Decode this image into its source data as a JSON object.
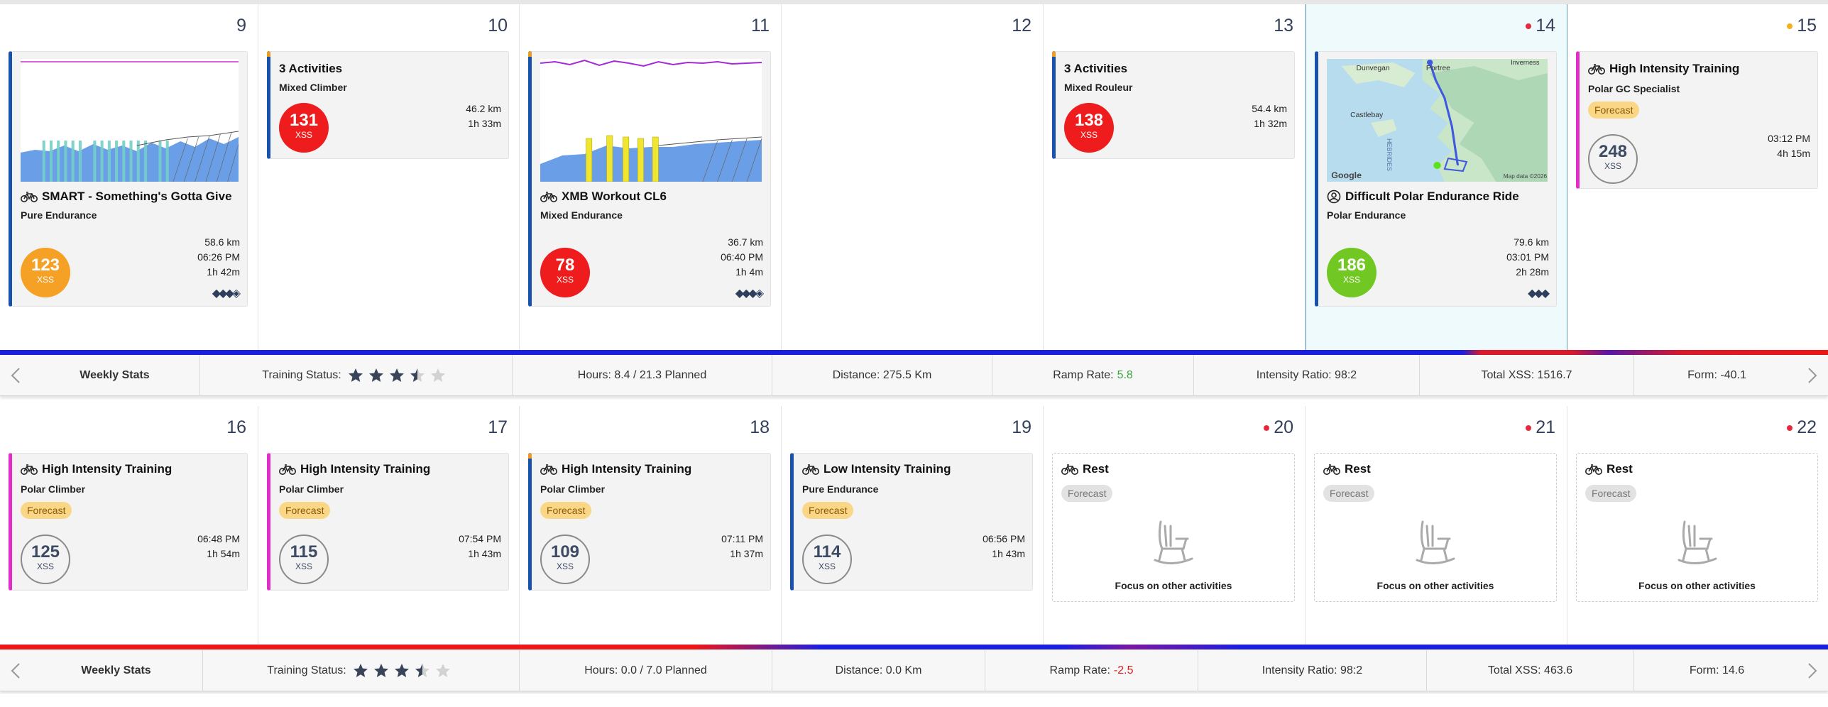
{
  "week1": {
    "days": [
      {
        "num": "9",
        "marker": ""
      },
      {
        "num": "10",
        "marker": ""
      },
      {
        "num": "11",
        "marker": ""
      },
      {
        "num": "12",
        "marker": ""
      },
      {
        "num": "13",
        "marker": ""
      },
      {
        "num": "14",
        "marker": "red"
      },
      {
        "num": "15",
        "marker": "gold"
      }
    ],
    "d9": {
      "title": "SMART - Something's Gotta Give",
      "sub": "Pure Endurance",
      "km": "58.6 km",
      "time": "06:26 PM",
      "dur": "1h 42m",
      "xss": "123",
      "xss_label": "XSS"
    },
    "d10": {
      "title": "3 Activities",
      "sub": "Mixed Climber",
      "km": "46.2 km",
      "dur": "1h 33m",
      "xss": "131",
      "xss_label": "XSS"
    },
    "d11": {
      "title": "XMB Workout CL6",
      "sub": "Mixed Endurance",
      "km": "36.7 km",
      "time": "06:40 PM",
      "dur": "1h 4m",
      "xss": "78",
      "xss_label": "XSS"
    },
    "d13": {
      "title": "3 Activities",
      "sub": "Mixed Rouleur",
      "km": "54.4 km",
      "dur": "1h 32m",
      "xss": "138",
      "xss_label": "XSS"
    },
    "d14": {
      "title": "Difficult Polar Endurance Ride",
      "sub": "Polar Endurance",
      "km": "79.6 km",
      "time": "03:01 PM",
      "dur": "2h 28m",
      "xss": "186",
      "xss_label": "XSS",
      "map": {
        "places": [
          "Dunvegan",
          "Portree",
          "Inverness",
          "Castlebay",
          "HEBRIDES"
        ],
        "logo": "Google",
        "copyright": "Map data ©2026"
      }
    },
    "d15": {
      "title": "High Intensity Training",
      "sub": "Polar GC Specialist",
      "forecast": "Forecast",
      "time": "03:12 PM",
      "dur": "4h 15m",
      "xss": "248",
      "xss_label": "XSS"
    }
  },
  "stats1": {
    "title": "Weekly Stats",
    "training_status_label": "Training Status:",
    "training_status_stars": 3.5,
    "hours": "Hours: 8.4 / 21.3 Planned",
    "distance": "Distance: 275.5 Km",
    "ramp_label": "Ramp Rate:",
    "ramp_value": "5.8",
    "intensity": "Intensity Ratio: 98:2",
    "total_xss": "Total XSS: 1516.7",
    "form": "Form: -40.1"
  },
  "week2": {
    "days": [
      {
        "num": "16",
        "marker": ""
      },
      {
        "num": "17",
        "marker": ""
      },
      {
        "num": "18",
        "marker": ""
      },
      {
        "num": "19",
        "marker": ""
      },
      {
        "num": "20",
        "marker": "red"
      },
      {
        "num": "21",
        "marker": "red"
      },
      {
        "num": "22",
        "marker": "red"
      }
    ],
    "d16": {
      "title": "High Intensity Training",
      "sub": "Polar Climber",
      "forecast": "Forecast",
      "time": "06:48 PM",
      "dur": "1h 54m",
      "xss": "125",
      "xss_label": "XSS"
    },
    "d17": {
      "title": "High Intensity Training",
      "sub": "Polar Climber",
      "forecast": "Forecast",
      "time": "07:54 PM",
      "dur": "1h 43m",
      "xss": "115",
      "xss_label": "XSS"
    },
    "d18": {
      "title": "High Intensity Training",
      "sub": "Polar Climber",
      "forecast": "Forecast",
      "time": "07:11 PM",
      "dur": "1h 37m",
      "xss": "109",
      "xss_label": "XSS"
    },
    "d19": {
      "title": "Low Intensity Training",
      "sub": "Pure Endurance",
      "forecast": "Forecast",
      "time": "06:56 PM",
      "dur": "1h 43m",
      "xss": "114",
      "xss_label": "XSS"
    },
    "rest": {
      "title": "Rest",
      "forecast": "Forecast",
      "focus": "Focus on other activities"
    }
  },
  "stats2": {
    "title": "Weekly Stats",
    "training_status_label": "Training Status:",
    "training_status_stars": 3.5,
    "hours": "Hours: 0.0 / 7.0 Planned",
    "distance": "Distance: 0.0 Km",
    "ramp_label": "Ramp Rate:",
    "ramp_value": "-2.5",
    "intensity": "Intensity Ratio: 98:2",
    "total_xss": "Total XSS: 463.6",
    "form": "Form: 14.6"
  },
  "colors": {
    "accent_blue": "#1752ad",
    "magenta": "#e42cc9",
    "xss_orange": "#f4a126",
    "xss_red": "#ee1c1c",
    "xss_green": "#72c822",
    "positive": "#3aa53a",
    "negative": "#e01b1b"
  },
  "icons": [
    "bike-icon",
    "person-icon",
    "rocking-chair-icon",
    "chevron-left-icon",
    "chevron-right-icon",
    "star-icon"
  ]
}
